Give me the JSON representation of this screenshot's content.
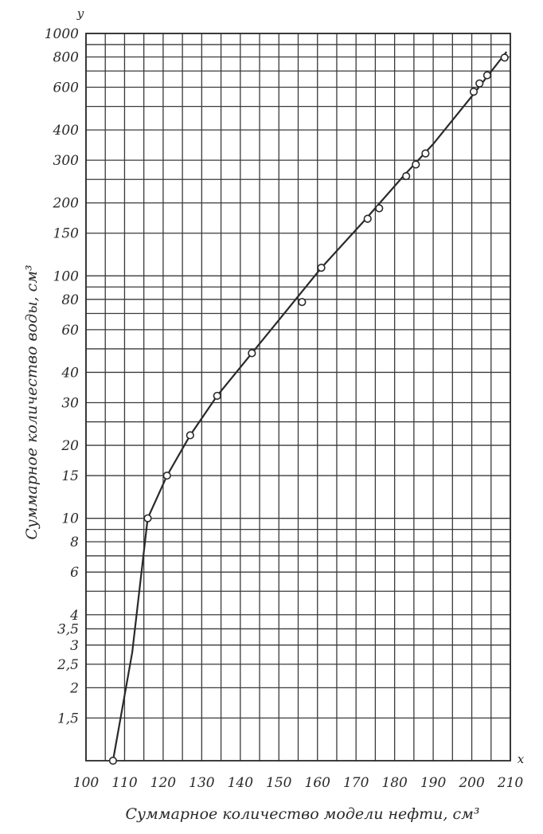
{
  "chart_data": {
    "type": "line",
    "title": "",
    "xlabel": "Суммарное количество модели нефти, см³",
    "ylabel": "Суммарное количество воды, см³",
    "x_axis_letter": "x",
    "y_axis_letter": "y",
    "x_scale": "linear",
    "y_scale": "log",
    "xlim": [
      100,
      210
    ],
    "ylim": [
      1,
      1000
    ],
    "grid": true,
    "legend": "none",
    "line_color": "#2a2a2a",
    "x_ticks": [
      {
        "value": 100,
        "label": "100"
      },
      {
        "value": 110,
        "label": "110"
      },
      {
        "value": 120,
        "label": "120"
      },
      {
        "value": 130,
        "label": "130"
      },
      {
        "value": 140,
        "label": "140"
      },
      {
        "value": 150,
        "label": "150"
      },
      {
        "value": 160,
        "label": "160"
      },
      {
        "value": 170,
        "label": "170"
      },
      {
        "value": 180,
        "label": "180"
      },
      {
        "value": 190,
        "label": "190"
      },
      {
        "value": 200,
        "label": "200"
      },
      {
        "value": 210,
        "label": "210"
      }
    ],
    "x_grid_values": [
      100,
      105,
      110,
      115,
      120,
      125,
      130,
      135,
      140,
      145,
      150,
      155,
      160,
      165,
      170,
      175,
      180,
      185,
      190,
      195,
      200,
      205,
      210
    ],
    "y_ticks": [
      {
        "value": 1.5,
        "label": "1,5"
      },
      {
        "value": 2,
        "label": "2"
      },
      {
        "value": 2.5,
        "label": "2,5"
      },
      {
        "value": 3,
        "label": "3"
      },
      {
        "value": 3.5,
        "label": "3,5"
      },
      {
        "value": 4,
        "label": "4"
      },
      {
        "value": 6,
        "label": "6"
      },
      {
        "value": 8,
        "label": "8"
      },
      {
        "value": 10,
        "label": "10"
      },
      {
        "value": 15,
        "label": "15"
      },
      {
        "value": 20,
        "label": "20"
      },
      {
        "value": 30,
        "label": "30"
      },
      {
        "value": 40,
        "label": "40"
      },
      {
        "value": 60,
        "label": "60"
      },
      {
        "value": 80,
        "label": "80"
      },
      {
        "value": 100,
        "label": "100"
      },
      {
        "value": 150,
        "label": "150"
      },
      {
        "value": 200,
        "label": "200"
      },
      {
        "value": 300,
        "label": "300"
      },
      {
        "value": 400,
        "label": "400"
      },
      {
        "value": 600,
        "label": "600"
      },
      {
        "value": 800,
        "label": "800"
      },
      {
        "value": 1000,
        "label": "1000"
      }
    ],
    "y_grid_values": [
      1.5,
      2,
      2.5,
      3,
      3.5,
      4,
      5,
      6,
      7,
      8,
      9,
      10,
      15,
      20,
      25,
      30,
      40,
      50,
      60,
      70,
      80,
      90,
      100,
      150,
      200,
      250,
      300,
      400,
      500,
      600,
      700,
      800,
      900,
      1000
    ],
    "line_points": [
      {
        "x": 107,
        "y": 1
      },
      {
        "x": 112,
        "y": 2.8
      },
      {
        "x": 116,
        "y": 10
      },
      {
        "x": 121,
        "y": 15
      },
      {
        "x": 127,
        "y": 22
      },
      {
        "x": 134,
        "y": 32
      },
      {
        "x": 143,
        "y": 48
      },
      {
        "x": 152,
        "y": 72
      },
      {
        "x": 161,
        "y": 108
      },
      {
        "x": 172,
        "y": 168
      },
      {
        "x": 182,
        "y": 255
      },
      {
        "x": 190,
        "y": 350
      },
      {
        "x": 200,
        "y": 550
      },
      {
        "x": 209,
        "y": 840
      }
    ],
    "markers": [
      {
        "x": 107,
        "y": 1
      },
      {
        "x": 116,
        "y": 10
      },
      {
        "x": 121,
        "y": 15
      },
      {
        "x": 127,
        "y": 22
      },
      {
        "x": 134,
        "y": 32
      },
      {
        "x": 143,
        "y": 48
      },
      {
        "x": 156,
        "y": 78
      },
      {
        "x": 161,
        "y": 108
      },
      {
        "x": 173,
        "y": 172
      },
      {
        "x": 176,
        "y": 190
      },
      {
        "x": 183,
        "y": 258
      },
      {
        "x": 185.5,
        "y": 288
      },
      {
        "x": 188,
        "y": 320
      },
      {
        "x": 200.5,
        "y": 575
      },
      {
        "x": 202,
        "y": 622
      },
      {
        "x": 204,
        "y": 672
      },
      {
        "x": 208.5,
        "y": 795
      }
    ]
  }
}
